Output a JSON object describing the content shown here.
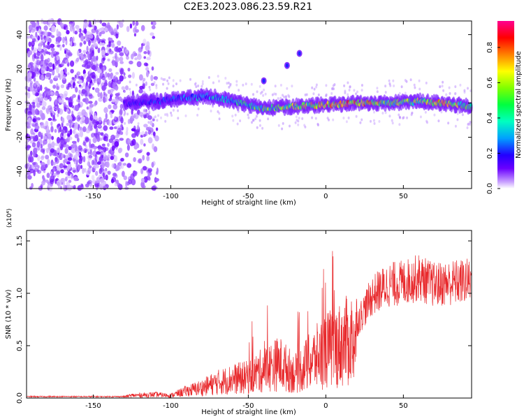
{
  "title": "C2E3.2023.086.23.59.R21",
  "colors": {
    "snr_line": "#e8282b",
    "background": "#ffffff",
    "colormap": [
      "#ffffff",
      "#b480ff",
      "#6a00ff",
      "#2200ff",
      "#00c0ff",
      "#00ff80",
      "#80ff00",
      "#ffff00",
      "#ff8000",
      "#ff0000",
      "#ff0090"
    ]
  },
  "chart_data": [
    {
      "type": "heatmap",
      "xlabel": "Height of straight line (km)",
      "ylabel": "Frequency (Hz)",
      "xlim": [
        -193,
        94
      ],
      "ylim": [
        -50,
        48
      ],
      "xticks": [
        -150,
        -100,
        -50,
        0,
        50
      ],
      "yticks": [
        -40,
        -20,
        0,
        20,
        40
      ],
      "colorbar": {
        "label": "Normalized spectral amplitude",
        "range": [
          0,
          0.95
        ],
        "ticks": [
          "0.0",
          "0.2",
          "0.4",
          "0.6",
          "0.8"
        ]
      },
      "noise_region_x": [
        -193,
        -108
      ],
      "ridge": [
        {
          "x": -130,
          "y": 0,
          "amp": 0.3
        },
        {
          "x": -110,
          "y": 1,
          "amp": 0.35
        },
        {
          "x": -90,
          "y": 3,
          "amp": 0.4
        },
        {
          "x": -75,
          "y": 4,
          "amp": 0.45
        },
        {
          "x": -60,
          "y": 1,
          "amp": 0.5
        },
        {
          "x": -40,
          "y": -3,
          "amp": 0.65
        },
        {
          "x": -20,
          "y": -2,
          "amp": 0.7
        },
        {
          "x": 0,
          "y": -1,
          "amp": 0.8
        },
        {
          "x": 20,
          "y": 0,
          "amp": 0.9
        },
        {
          "x": 40,
          "y": 0,
          "amp": 0.75
        },
        {
          "x": 60,
          "y": 1,
          "amp": 0.7
        },
        {
          "x": 75,
          "y": 0,
          "amp": 0.85
        },
        {
          "x": 94,
          "y": -2,
          "amp": 0.6
        }
      ],
      "harmonic_points": [
        {
          "x": -40,
          "y": 13
        },
        {
          "x": -25,
          "y": 22
        },
        {
          "x": -17,
          "y": 29
        }
      ]
    },
    {
      "type": "line",
      "xlabel": "Height of straight line (km)",
      "ylabel": "SNR (10 * v/v)",
      "y_multiplier": "(x10⁴)",
      "xlim": [
        -193,
        94
      ],
      "ylim": [
        0,
        1.6
      ],
      "xticks": [
        -150,
        -100,
        -50,
        0,
        50
      ],
      "yticks": [
        "0.0",
        "0.5",
        "1.0",
        "1.5"
      ],
      "series": [
        {
          "x": [
            -193,
            -150,
            -130,
            -125,
            -110,
            -100,
            -90,
            -80,
            -70,
            -60,
            -50,
            -40,
            -30,
            -20,
            -10,
            0,
            10,
            20,
            30,
            40,
            50,
            60,
            70,
            80,
            94
          ],
          "y": [
            0.01,
            0.01,
            0.015,
            0.03,
            0.04,
            0.03,
            0.08,
            0.12,
            0.18,
            0.22,
            0.24,
            0.33,
            0.4,
            0.28,
            0.42,
            0.55,
            0.62,
            0.72,
            0.98,
            1.08,
            1.1,
            1.15,
            1.08,
            1.1,
            1.12
          ]
        }
      ]
    }
  ]
}
